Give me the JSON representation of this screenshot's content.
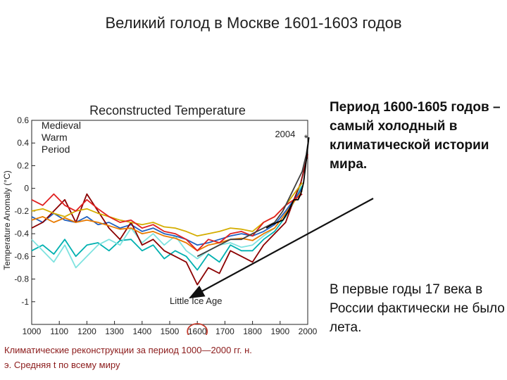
{
  "slide": {
    "title": "Великий голод в Москве 1601-1603 годов",
    "right_bold_text": "Период 1600-1605 годов – самый холодный в климатической истории мира.",
    "right_plain_text": "В первые годы 17 века в России фактически не было лета.",
    "caption": "Климатические реконструкции за период 1000—2000 гг. н. э. Средняя t по всему миру"
  },
  "colors": {
    "arrow": "#111111",
    "highlight_circle": "#c0392b",
    "caption_text": "#8b1a1a"
  },
  "chart_data": {
    "type": "line",
    "title": "Reconstructed Temperature",
    "ylabel": "Temperature Anomaly (°C)",
    "xlabel": "",
    "xlim": [
      1000,
      2000
    ],
    "ylim": [
      -1.2,
      0.6
    ],
    "x_ticks": [
      1000,
      1100,
      1200,
      1300,
      1400,
      1500,
      1600,
      1700,
      1800,
      1900,
      2000
    ],
    "y_ticks": [
      0.6,
      0.4,
      0.2,
      0,
      -0.2,
      -0.4,
      -0.6,
      -0.8,
      -1
    ],
    "y_tick_labels": [
      "0.6",
      "0.4",
      "0.2",
      "0",
      "-0.2",
      "-0.4",
      "-0.6",
      "-0.8",
      "-1"
    ],
    "grid": false,
    "annotations": [
      {
        "text": "Medieval Warm Period",
        "lines": [
          "Medieval",
          "Warm",
          "Period"
        ],
        "x": 1010,
        "y": 0.45
      },
      {
        "text": "Little Ice Age",
        "x": 1500,
        "y": -1.02
      },
      {
        "text": "2004",
        "x": 1955,
        "y": 0.45
      }
    ],
    "marker_2004": {
      "x": 2004,
      "y": 0.45
    },
    "highlight_circle_year": 1600,
    "series": [
      {
        "color": "#00b0b0",
        "x": [
          1000,
          1040,
          1080,
          1120,
          1160,
          1200,
          1240,
          1280,
          1320,
          1360,
          1400,
          1440,
          1480,
          1520,
          1560,
          1600,
          1640,
          1680,
          1720,
          1760,
          1800,
          1840,
          1880,
          1920,
          1950,
          1980
        ],
        "y": [
          -0.55,
          -0.5,
          -0.58,
          -0.45,
          -0.6,
          -0.5,
          -0.48,
          -0.55,
          -0.46,
          -0.45,
          -0.55,
          -0.5,
          -0.62,
          -0.55,
          -0.6,
          -0.72,
          -0.58,
          -0.65,
          -0.5,
          -0.55,
          -0.55,
          -0.45,
          -0.38,
          -0.25,
          -0.12,
          0.02
        ]
      },
      {
        "color": "#7fe3e0",
        "x": [
          1000,
          1040,
          1080,
          1120,
          1160,
          1200,
          1240,
          1280,
          1320,
          1360,
          1400,
          1440,
          1480,
          1520,
          1560,
          1600,
          1640,
          1680,
          1720,
          1760,
          1800,
          1840,
          1880,
          1920,
          1950,
          1980
        ],
        "y": [
          -0.45,
          -0.55,
          -0.65,
          -0.5,
          -0.7,
          -0.6,
          -0.5,
          -0.45,
          -0.5,
          -0.35,
          -0.48,
          -0.4,
          -0.5,
          -0.42,
          -0.55,
          -0.62,
          -0.55,
          -0.5,
          -0.48,
          -0.52,
          -0.5,
          -0.42,
          -0.35,
          -0.22,
          -0.1,
          0.05
        ]
      },
      {
        "color": "#2060c0",
        "x": [
          1000,
          1040,
          1080,
          1120,
          1160,
          1200,
          1240,
          1280,
          1320,
          1360,
          1400,
          1440,
          1480,
          1520,
          1560,
          1600,
          1640,
          1680,
          1720,
          1760,
          1800,
          1840,
          1880,
          1920,
          1950,
          1980
        ],
        "y": [
          -0.25,
          -0.3,
          -0.22,
          -0.28,
          -0.3,
          -0.25,
          -0.32,
          -0.3,
          -0.35,
          -0.32,
          -0.38,
          -0.35,
          -0.4,
          -0.42,
          -0.45,
          -0.5,
          -0.48,
          -0.45,
          -0.42,
          -0.4,
          -0.42,
          -0.38,
          -0.32,
          -0.2,
          -0.1,
          0.0
        ]
      },
      {
        "color": "#8b0000",
        "x": [
          1000,
          1040,
          1080,
          1120,
          1160,
          1200,
          1240,
          1280,
          1320,
          1360,
          1400,
          1440,
          1480,
          1520,
          1560,
          1600,
          1640,
          1680,
          1720,
          1760,
          1800,
          1840,
          1880,
          1920,
          1950,
          1975,
          1990,
          2000
        ],
        "y": [
          -0.35,
          -0.3,
          -0.2,
          -0.1,
          -0.3,
          -0.05,
          -0.2,
          -0.35,
          -0.45,
          -0.3,
          -0.5,
          -0.45,
          -0.55,
          -0.6,
          -0.65,
          -0.85,
          -0.7,
          -0.75,
          -0.55,
          -0.6,
          -0.65,
          -0.5,
          -0.4,
          -0.3,
          -0.1,
          0.05,
          0.2,
          0.3
        ]
      },
      {
        "color": "#d4ad00",
        "x": [
          1000,
          1040,
          1080,
          1120,
          1160,
          1200,
          1240,
          1280,
          1320,
          1360,
          1400,
          1440,
          1480,
          1520,
          1560,
          1600,
          1640,
          1680,
          1720,
          1760,
          1800,
          1840,
          1880,
          1920,
          1950,
          1980
        ],
        "y": [
          -0.2,
          -0.18,
          -0.22,
          -0.25,
          -0.2,
          -0.18,
          -0.22,
          -0.25,
          -0.28,
          -0.3,
          -0.32,
          -0.3,
          -0.34,
          -0.35,
          -0.38,
          -0.42,
          -0.4,
          -0.38,
          -0.35,
          -0.36,
          -0.38,
          -0.3,
          -0.25,
          -0.15,
          -0.05,
          0.05
        ]
      },
      {
        "color": "#e87a00",
        "x": [
          1000,
          1040,
          1080,
          1120,
          1160,
          1200,
          1240,
          1280,
          1320,
          1360,
          1400,
          1440,
          1480,
          1520,
          1560,
          1600,
          1640,
          1680,
          1720,
          1760,
          1800,
          1840,
          1880,
          1920,
          1950,
          1980
        ],
        "y": [
          -0.28,
          -0.25,
          -0.3,
          -0.26,
          -0.3,
          -0.28,
          -0.3,
          -0.33,
          -0.36,
          -0.35,
          -0.4,
          -0.38,
          -0.42,
          -0.44,
          -0.48,
          -0.55,
          -0.5,
          -0.48,
          -0.45,
          -0.44,
          -0.46,
          -0.4,
          -0.35,
          -0.22,
          -0.12,
          -0.02
        ]
      },
      {
        "color": "#e02020",
        "x": [
          1000,
          1040,
          1080,
          1120,
          1160,
          1200,
          1240,
          1280,
          1320,
          1360,
          1400,
          1440,
          1480,
          1520,
          1560,
          1600,
          1640,
          1680,
          1720,
          1760,
          1800,
          1840,
          1880,
          1920,
          1950,
          1980
        ],
        "y": [
          -0.1,
          -0.15,
          -0.05,
          -0.15,
          -0.2,
          -0.1,
          -0.18,
          -0.25,
          -0.3,
          -0.28,
          -0.35,
          -0.32,
          -0.38,
          -0.4,
          -0.45,
          -0.55,
          -0.45,
          -0.48,
          -0.4,
          -0.38,
          -0.42,
          -0.3,
          -0.25,
          -0.15,
          -0.1,
          -0.05
        ]
      },
      {
        "color": "#404040",
        "x": [
          1600,
          1640,
          1680,
          1720,
          1760,
          1800,
          1840,
          1880,
          1910,
          1940,
          1960,
          1980,
          1995,
          2004
        ],
        "y": [
          -0.6,
          -0.55,
          -0.5,
          -0.45,
          -0.45,
          -0.4,
          -0.35,
          -0.3,
          -0.2,
          -0.05,
          0.05,
          0.15,
          0.3,
          0.45
        ]
      },
      {
        "color": "#000000",
        "x": [
          1850,
          1870,
          1890,
          1910,
          1930,
          1950,
          1965,
          1975,
          1985,
          1995,
          2004
        ],
        "y": [
          -0.35,
          -0.32,
          -0.3,
          -0.28,
          -0.2,
          -0.1,
          -0.1,
          -0.05,
          0.05,
          0.25,
          0.45
        ]
      }
    ]
  }
}
